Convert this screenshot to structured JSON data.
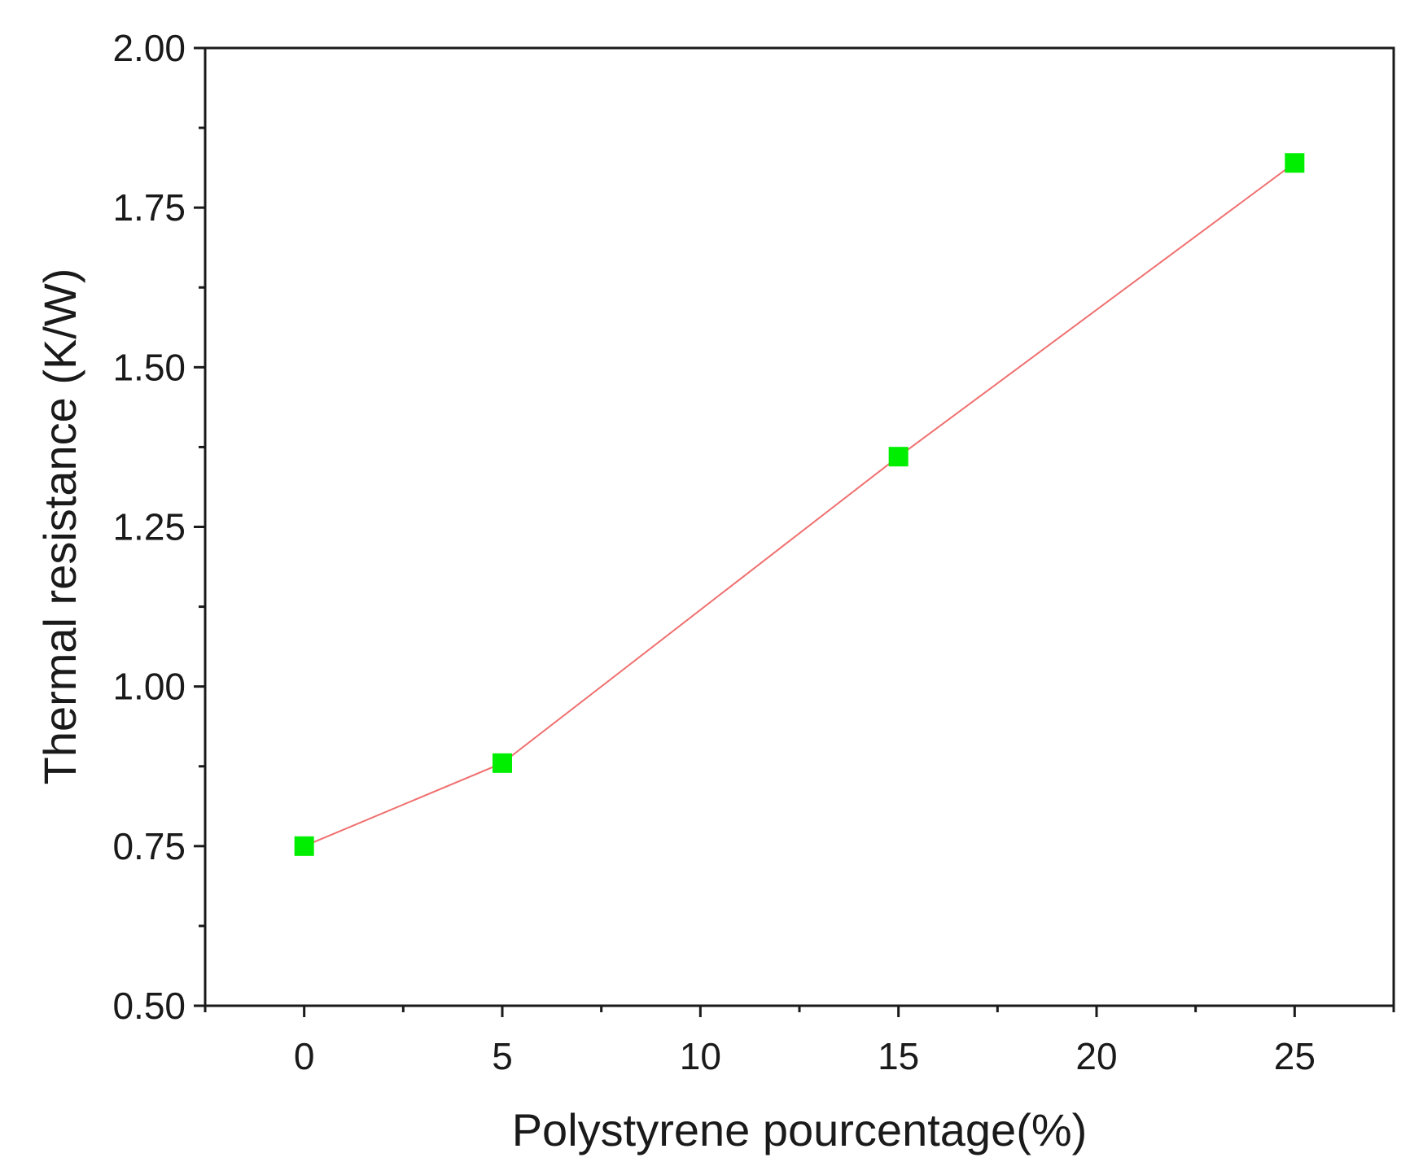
{
  "chart_data": {
    "type": "line",
    "title": "",
    "xlabel": "Polystyrene pourcentage(%)",
    "ylabel": "Thermal resistance (K/W)",
    "xlim": [
      -2.5,
      27.5
    ],
    "ylim": [
      0.5,
      2.0
    ],
    "x_ticks": [
      0,
      5,
      10,
      15,
      20,
      25
    ],
    "x_tick_labels": [
      "0",
      "5",
      "10",
      "15",
      "20",
      "25"
    ],
    "y_ticks": [
      0.5,
      0.75,
      1.0,
      1.25,
      1.5,
      1.75,
      2.0
    ],
    "y_tick_labels": [
      "0.50",
      "0.75",
      "1.00",
      "1.25",
      "1.50",
      "1.75",
      "2.00"
    ],
    "grid": false,
    "legend": "none",
    "series": [
      {
        "x": [
          0,
          5,
          15,
          25
        ],
        "values": [
          0.75,
          0.88,
          1.36,
          1.82
        ],
        "line_color": "#f07070",
        "marker": "square",
        "marker_color": "#00ee00"
      }
    ]
  }
}
